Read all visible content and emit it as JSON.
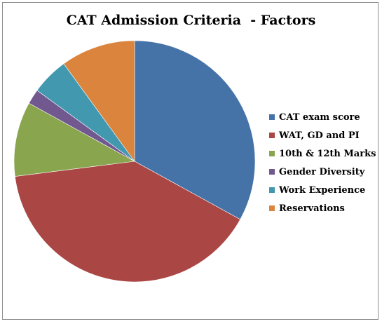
{
  "chart_data": {
    "type": "pie",
    "title": "CAT Admission Criteria  - Factors",
    "slices": [
      {
        "label": "CAT exam score",
        "value": 33,
        "color": "#4572A7"
      },
      {
        "label": "WAT, GD and PI",
        "value": 40,
        "color": "#AA4643"
      },
      {
        "label": "10th & 12th Marks",
        "value": 10,
        "color": "#89A54E"
      },
      {
        "label": "Gender Diversity",
        "value": 2,
        "color": "#71588F"
      },
      {
        "label": "Work Experience",
        "value": 5,
        "color": "#4198AF"
      },
      {
        "label": "Reservations",
        "value": 10,
        "color": "#DB843D"
      }
    ],
    "legend_position": "right"
  }
}
